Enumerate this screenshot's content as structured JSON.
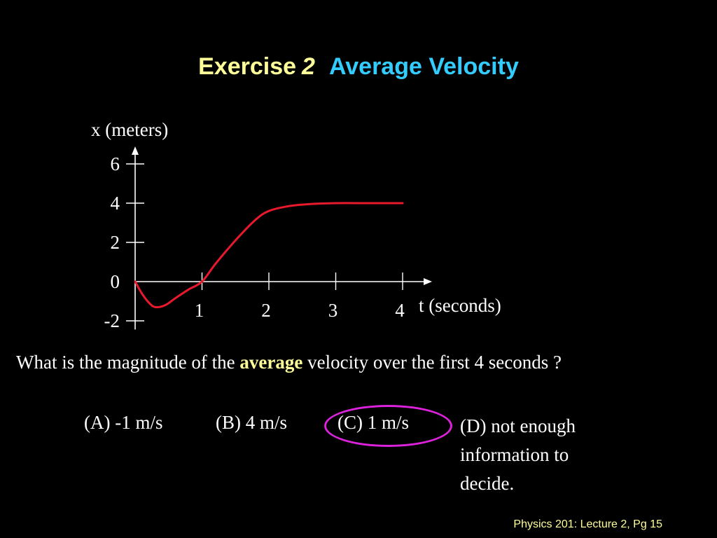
{
  "title": {
    "exercise": "Exercise",
    "number": "2",
    "topic": "Average Velocity"
  },
  "chart_data": {
    "type": "line",
    "ylabel": "x (meters)",
    "xlabel": "t (seconds)",
    "x_ticks": [
      "1",
      "2",
      "3",
      "4"
    ],
    "y_ticks": [
      "6",
      "4",
      "2",
      "0",
      "-2"
    ],
    "xlim": [
      0,
      4.4
    ],
    "ylim": [
      -2.3,
      6.8
    ],
    "grid": false,
    "series": [
      {
        "x": [
          0,
          0.1,
          0.2,
          0.3,
          0.45,
          0.6,
          0.8,
          1.0,
          1.2,
          1.5,
          1.8,
          2.0,
          2.3,
          2.6,
          3.0,
          3.5,
          4.0
        ],
        "y": [
          0,
          -0.6,
          -1.05,
          -1.3,
          -1.2,
          -0.85,
          -0.4,
          0.0,
          0.9,
          2.1,
          3.15,
          3.6,
          3.85,
          3.95,
          4.0,
          4.0,
          4.0
        ]
      }
    ],
    "colors": {
      "curve": "#e8192c",
      "axes": "#ffffff"
    }
  },
  "question": {
    "before": "What is the magnitude of the ",
    "emphasis": "average",
    "after": " velocity over the first 4 seconds ?"
  },
  "choices": {
    "a": "(A) -1 m/s",
    "b": "(B) 4 m/s",
    "c": "(C) 1 m/s",
    "d": "(D) not enough information to decide."
  },
  "footer": "Physics 201: Lecture 2, Pg 15"
}
